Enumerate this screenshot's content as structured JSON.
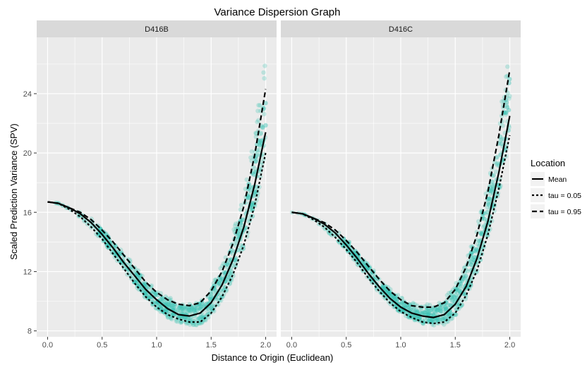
{
  "chart_data": {
    "type": "line",
    "title": "Variance Dispersion Graph",
    "xlabel": "Distance to Origin (Euclidean)",
    "ylabel": "Scaled Prediction Variance (SPV)",
    "xlim": [
      -0.1,
      2.1
    ],
    "ylim": [
      7.6,
      27.8
    ],
    "x_ticks": [
      0.0,
      0.5,
      1.0,
      1.5,
      2.0
    ],
    "x_tick_labels": [
      "0.0",
      "0.5",
      "1.0",
      "1.5",
      "2.0"
    ],
    "y_ticks": [
      8,
      12,
      16,
      20,
      24
    ],
    "y_tick_labels": [
      "8",
      "12",
      "16",
      "20",
      "24"
    ],
    "grid": true,
    "legend": {
      "title": "Location",
      "placement": "right",
      "entries": [
        {
          "label": "Mean",
          "style": "solid"
        },
        {
          "label": "tau = 0.05",
          "style": "dotted"
        },
        {
          "label": "tau = 0.95",
          "style": "dashed"
        }
      ]
    },
    "colors": {
      "points": "#3fc4b5",
      "line": "#000000",
      "panel_bg": "#ebebeb",
      "strip_bg": "#d9d9d9",
      "grid": "#ffffff"
    },
    "panels": [
      {
        "label": "D416B",
        "x": [
          0.0,
          0.1,
          0.2,
          0.3,
          0.4,
          0.5,
          0.6,
          0.7,
          0.8,
          0.9,
          1.0,
          1.1,
          1.2,
          1.3,
          1.4,
          1.5,
          1.6,
          1.7,
          1.8,
          1.9,
          2.0
        ],
        "mean": [
          16.7,
          16.6,
          16.3,
          15.9,
          15.3,
          14.5,
          13.6,
          12.6,
          11.7,
          10.8,
          10.1,
          9.5,
          9.1,
          9.0,
          9.2,
          9.9,
          11.1,
          12.8,
          15.0,
          17.9,
          21.4
        ],
        "tau_05": [
          16.7,
          16.6,
          16.2,
          15.7,
          15.0,
          14.2,
          13.2,
          12.2,
          11.2,
          10.3,
          9.6,
          9.1,
          8.8,
          8.6,
          8.6,
          9.2,
          10.3,
          11.8,
          13.8,
          16.5,
          20.0
        ],
        "tau_95": [
          16.7,
          16.6,
          16.3,
          16.0,
          15.5,
          14.8,
          14.0,
          13.1,
          12.2,
          11.3,
          10.6,
          10.1,
          9.8,
          9.7,
          9.9,
          10.7,
          12.0,
          13.9,
          16.4,
          19.9,
          24.3
        ],
        "points_ymin": [
          16.7,
          16.6,
          16.2,
          15.6,
          14.9,
          14.1,
          13.1,
          12.1,
          11.1,
          10.2,
          9.4,
          8.9,
          8.6,
          8.4,
          8.4,
          9.0,
          10.1,
          11.6,
          13.6,
          16.2,
          19.6
        ],
        "points_ymax": [
          16.7,
          16.6,
          16.3,
          16.0,
          15.6,
          14.9,
          14.1,
          13.3,
          12.4,
          11.5,
          10.8,
          10.3,
          10.0,
          9.9,
          10.2,
          11.0,
          12.5,
          14.6,
          17.4,
          21.3,
          27.0
        ]
      },
      {
        "label": "D416C",
        "x": [
          0.0,
          0.1,
          0.2,
          0.3,
          0.4,
          0.5,
          0.6,
          0.7,
          0.8,
          0.9,
          1.0,
          1.1,
          1.2,
          1.3,
          1.4,
          1.5,
          1.6,
          1.7,
          1.8,
          1.9,
          2.0
        ],
        "mean": [
          16.0,
          15.9,
          15.6,
          15.2,
          14.6,
          13.8,
          12.9,
          11.9,
          11.0,
          10.2,
          9.6,
          9.2,
          9.0,
          8.9,
          9.1,
          9.8,
          11.0,
          12.9,
          15.4,
          18.7,
          22.5
        ],
        "tau_05": [
          16.0,
          15.9,
          15.5,
          15.0,
          14.3,
          13.5,
          12.6,
          11.6,
          10.7,
          9.9,
          9.3,
          8.9,
          8.6,
          8.5,
          8.6,
          9.2,
          10.4,
          12.1,
          14.5,
          17.6,
          21.2
        ],
        "tau_95": [
          16.0,
          15.9,
          15.6,
          15.3,
          14.8,
          14.1,
          13.3,
          12.4,
          11.5,
          10.7,
          10.1,
          9.7,
          9.6,
          9.6,
          9.9,
          10.8,
          12.3,
          14.5,
          17.4,
          21.2,
          25.6
        ],
        "points_ymin": [
          16.0,
          15.9,
          15.5,
          14.9,
          14.2,
          13.4,
          12.5,
          11.5,
          10.6,
          9.8,
          9.2,
          8.8,
          8.5,
          8.3,
          8.4,
          9.0,
          10.2,
          11.9,
          14.2,
          17.2,
          20.8
        ],
        "points_ymax": [
          16.0,
          15.9,
          15.6,
          15.3,
          14.9,
          14.2,
          13.4,
          12.5,
          11.7,
          10.9,
          10.3,
          9.9,
          9.8,
          9.8,
          10.2,
          11.1,
          12.7,
          15.0,
          18.1,
          22.2,
          27.0
        ]
      }
    ]
  }
}
